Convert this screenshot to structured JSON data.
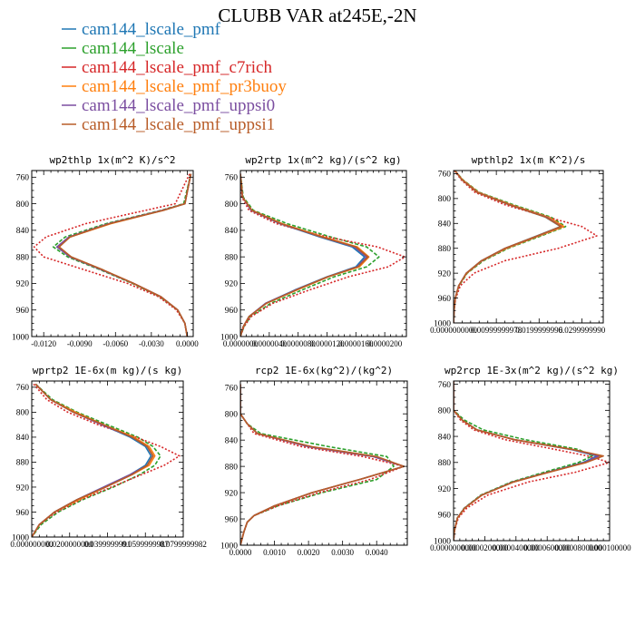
{
  "title": "CLUBB VAR at245E,-2N",
  "legend": [
    {
      "name": "cam144_lscale_pmf",
      "color": "#1f77b4",
      "dash": "solid"
    },
    {
      "name": "cam144_lscale",
      "color": "#2ca02c",
      "dash": "dashed"
    },
    {
      "name": "cam144_lscale_pmf_c7rich",
      "color": "#d62728",
      "dash": "dotted"
    },
    {
      "name": "cam144_lscale_pmf_pr3buoy",
      "color": "#ff7f0e",
      "dash": "solid"
    },
    {
      "name": "cam144_lscale_pmf_uppsi0",
      "color": "#7b4ea0",
      "dash": "solid"
    },
    {
      "name": "cam144_lscale_pmf_uppsi1",
      "color": "#b85c28",
      "dash": "solid"
    }
  ],
  "chart_data": [
    {
      "type": "line",
      "title": "wp2thlp   1x(m^2 K)/s^2",
      "xlim": [
        -0.013,
        0.0005
      ],
      "ylim": [
        1000,
        750
      ],
      "xticks": [
        "-0.0120",
        "-0.0090",
        "-0.0060",
        "-0.0030",
        "0.0000"
      ],
      "xtick_values": [
        -0.012,
        -0.009,
        -0.006,
        -0.003,
        0.0
      ],
      "yticks": [
        760,
        800,
        840,
        880,
        920,
        960,
        1000
      ],
      "y": [
        755,
        800,
        810,
        830,
        850,
        865,
        880,
        900,
        920,
        940,
        960,
        980,
        1000
      ],
      "series": [
        {
          "name": "cam144_lscale_pmf",
          "values": [
            0.0003,
            -0.0002,
            -0.002,
            -0.0065,
            -0.0098,
            -0.0108,
            -0.0097,
            -0.007,
            -0.0045,
            -0.0022,
            -0.0008,
            -0.0002,
            0.0
          ]
        },
        {
          "name": "cam144_lscale",
          "values": [
            0.0003,
            -0.0003,
            -0.0022,
            -0.0068,
            -0.0102,
            -0.0112,
            -0.01,
            -0.0072,
            -0.0046,
            -0.0023,
            -0.0008,
            -0.0002,
            0.0
          ]
        },
        {
          "name": "cam144_lscale_pmf_c7rich",
          "values": [
            0.0002,
            -0.001,
            -0.0035,
            -0.0085,
            -0.0118,
            -0.0128,
            -0.012,
            -0.0085,
            -0.005,
            -0.0024,
            -0.0009,
            -0.0002,
            0.0
          ]
        },
        {
          "name": "cam144_lscale_pmf_pr3buoy",
          "values": [
            0.0003,
            -0.0002,
            -0.002,
            -0.0064,
            -0.0098,
            -0.0108,
            -0.0097,
            -0.007,
            -0.0045,
            -0.0022,
            -0.0008,
            -0.0002,
            0.0
          ]
        },
        {
          "name": "cam144_lscale_pmf_uppsi0",
          "values": [
            0.0003,
            -0.0002,
            -0.0021,
            -0.0066,
            -0.0099,
            -0.0109,
            -0.0098,
            -0.0071,
            -0.0045,
            -0.0022,
            -0.0008,
            -0.0002,
            0.0
          ]
        },
        {
          "name": "cam144_lscale_pmf_uppsi1",
          "values": [
            0.0003,
            -0.0002,
            -0.002,
            -0.0065,
            -0.0098,
            -0.0107,
            -0.0097,
            -0.007,
            -0.0045,
            -0.0022,
            -0.0008,
            -0.0002,
            0.0
          ]
        }
      ]
    },
    {
      "type": "line",
      "title": "wp2rtp   1x(m^2 kg)/(s^2 kg)",
      "xlim": [
        0,
        2.3e-05
      ],
      "ylim": [
        1000,
        750
      ],
      "xticks": [
        "0.0000000",
        "0.0000040",
        "0.0000080",
        "0.0000120",
        "0.0000160",
        "0.0000200"
      ],
      "xtick_values": [
        0,
        4e-06,
        8e-06,
        1.2e-05,
        1.6e-05,
        2e-05
      ],
      "yticks": [
        760,
        800,
        840,
        880,
        920,
        960,
        1000
      ],
      "y": [
        755,
        790,
        810,
        830,
        850,
        865,
        880,
        895,
        910,
        930,
        950,
        970,
        985,
        1000
      ],
      "series": [
        {
          "name": "cam144_lscale_pmf",
          "values": [
            0.0,
            3e-07,
            1.5e-06,
            5.5e-06,
            1.1e-05,
            1.55e-05,
            1.72e-05,
            1.6e-05,
            1.2e-05,
            7.5e-06,
            3.5e-06,
            1.2e-06,
            4e-07,
            0.0
          ]
        },
        {
          "name": "cam144_lscale",
          "values": [
            0.0,
            4e-07,
            1.8e-06,
            6.5e-06,
            1.25e-05,
            1.75e-05,
            1.92e-05,
            1.75e-05,
            1.3e-05,
            8.5e-06,
            4.2e-06,
            1.4e-06,
            5e-07,
            0.0
          ]
        },
        {
          "name": "cam144_lscale_pmf_c7rich",
          "values": [
            0.0,
            2e-07,
            1.2e-06,
            5e-06,
            1.2e-05,
            1.9e-05,
            2.28e-05,
            2.05e-05,
            1.5e-05,
            9.5e-06,
            4.5e-06,
            1.5e-06,
            5e-07,
            0.0
          ]
        },
        {
          "name": "cam144_lscale_pmf_pr3buoy",
          "values": [
            0.0,
            3e-07,
            1.6e-06,
            5.8e-06,
            1.15e-05,
            1.62e-05,
            1.78e-05,
            1.65e-05,
            1.22e-05,
            7.8e-06,
            3.6e-06,
            1.2e-06,
            4e-07,
            0.0
          ]
        },
        {
          "name": "cam144_lscale_pmf_uppsi0",
          "values": [
            0.0,
            3e-07,
            1.5e-06,
            5.6e-06,
            1.12e-05,
            1.58e-05,
            1.75e-05,
            1.62e-05,
            1.21e-05,
            7.6e-06,
            3.5e-06,
            1.2e-06,
            4e-07,
            0.0
          ]
        },
        {
          "name": "cam144_lscale_pmf_uppsi1",
          "values": [
            0.0,
            3e-07,
            1.6e-06,
            5.7e-06,
            1.13e-05,
            1.6e-05,
            1.77e-05,
            1.63e-05,
            1.21e-05,
            7.7e-06,
            3.6e-06,
            1.2e-06,
            4e-07,
            0.0
          ]
        }
      ]
    },
    {
      "type": "line",
      "title": "wpthlp2   1x(m K^2)/s",
      "xlim": [
        0,
        0.035
      ],
      "ylim": [
        1000,
        755
      ],
      "xticks": [
        "0.0000000000",
        "0.00999999978",
        "0.0199999996",
        "0.0299999990"
      ],
      "xtick_values": [
        0,
        0.01,
        0.02,
        0.03
      ],
      "yticks": [
        760,
        800,
        840,
        880,
        920,
        960,
        1000
      ],
      "y": [
        755,
        770,
        790,
        810,
        830,
        845,
        860,
        880,
        900,
        920,
        940,
        960,
        980,
        1000
      ],
      "series": [
        {
          "name": "cam144_lscale_pmf",
          "values": [
            0.0003,
            0.002,
            0.0055,
            0.013,
            0.0215,
            0.025,
            0.0195,
            0.012,
            0.0065,
            0.003,
            0.0012,
            0.0004,
            0.0001,
            0.0
          ]
        },
        {
          "name": "cam144_lscale",
          "values": [
            0.0003,
            0.0022,
            0.006,
            0.014,
            0.0228,
            0.0262,
            0.0205,
            0.0128,
            0.007,
            0.0032,
            0.0013,
            0.0004,
            0.0001,
            0.0
          ]
        },
        {
          "name": "cam144_lscale_pmf_c7rich",
          "values": [
            0.0002,
            0.0018,
            0.005,
            0.012,
            0.022,
            0.03,
            0.0335,
            0.0245,
            0.012,
            0.0048,
            0.0016,
            0.0005,
            0.0001,
            0.0
          ]
        },
        {
          "name": "cam144_lscale_pmf_pr3buoy",
          "values": [
            0.0003,
            0.0021,
            0.0058,
            0.0135,
            0.0222,
            0.0258,
            0.02,
            0.0124,
            0.0067,
            0.0031,
            0.0012,
            0.0004,
            0.0001,
            0.0
          ]
        },
        {
          "name": "cam144_lscale_pmf_uppsi0",
          "values": [
            0.0003,
            0.002,
            0.0056,
            0.0132,
            0.0218,
            0.0252,
            0.0197,
            0.0121,
            0.0066,
            0.003,
            0.0012,
            0.0004,
            0.0001,
            0.0
          ]
        },
        {
          "name": "cam144_lscale_pmf_uppsi1",
          "values": [
            0.0003,
            0.002,
            0.0055,
            0.0131,
            0.0216,
            0.0251,
            0.0196,
            0.012,
            0.0065,
            0.003,
            0.0012,
            0.0004,
            0.0001,
            0.0
          ]
        }
      ]
    },
    {
      "type": "line",
      "title": "wprtp2   1E-6x(m kg)/(s kg)",
      "xlim": [
        0,
        0.08
      ],
      "ylim": [
        1000,
        750
      ],
      "xticks": [
        "0.000000000",
        "0.0200000000",
        "0.0399999991",
        "0.0599999987",
        "0.0799999982"
      ],
      "xtick_values": [
        0,
        0.02,
        0.04,
        0.06,
        0.08
      ],
      "yticks": [
        760,
        800,
        840,
        880,
        920,
        960,
        1000
      ],
      "y": [
        755,
        780,
        800,
        820,
        840,
        855,
        870,
        885,
        900,
        920,
        940,
        960,
        980,
        1000
      ],
      "series": [
        {
          "name": "cam144_lscale_pmf",
          "values": [
            0.002,
            0.01,
            0.022,
            0.037,
            0.052,
            0.06,
            0.063,
            0.06,
            0.052,
            0.038,
            0.024,
            0.012,
            0.004,
            0.0
          ]
        },
        {
          "name": "cam144_lscale",
          "values": [
            0.002,
            0.011,
            0.024,
            0.04,
            0.056,
            0.064,
            0.068,
            0.065,
            0.057,
            0.043,
            0.027,
            0.014,
            0.005,
            0.0
          ]
        },
        {
          "name": "cam144_lscale_pmf_c7rich",
          "values": [
            0.001,
            0.008,
            0.019,
            0.035,
            0.055,
            0.068,
            0.078,
            0.07,
            0.058,
            0.042,
            0.026,
            0.013,
            0.004,
            0.0
          ]
        },
        {
          "name": "cam144_lscale_pmf_pr3buoy",
          "values": [
            0.002,
            0.01,
            0.023,
            0.038,
            0.054,
            0.062,
            0.065,
            0.062,
            0.053,
            0.039,
            0.025,
            0.012,
            0.004,
            0.0
          ]
        },
        {
          "name": "cam144_lscale_pmf_uppsi0",
          "values": [
            0.002,
            0.01,
            0.022,
            0.037,
            0.053,
            0.061,
            0.064,
            0.061,
            0.052,
            0.038,
            0.024,
            0.012,
            0.004,
            0.0
          ]
        },
        {
          "name": "cam144_lscale_pmf_uppsi1",
          "values": [
            0.002,
            0.01,
            0.022,
            0.038,
            0.053,
            0.061,
            0.064,
            0.061,
            0.053,
            0.039,
            0.024,
            0.012,
            0.004,
            0.0
          ]
        }
      ]
    },
    {
      "type": "line",
      "title": "rcp2   1E-6x(kg^2)/(kg^2)",
      "xlim": [
        0,
        0.0049
      ],
      "ylim": [
        1000,
        750
      ],
      "xticks": [
        "0.0000",
        "0.0010",
        "0.0020",
        "0.0030",
        "0.0040"
      ],
      "xtick_values": [
        0,
        0.001,
        0.002,
        0.003,
        0.004
      ],
      "yticks": [
        760,
        800,
        840,
        880,
        920,
        960,
        1000
      ],
      "y": [
        755,
        800,
        815,
        830,
        850,
        865,
        880,
        900,
        920,
        940,
        955,
        965,
        980,
        1000
      ],
      "series": [
        {
          "name": "cam144_lscale_pmf",
          "values": [
            0.0,
            0.0,
            0.0002,
            0.0005,
            0.002,
            0.0039,
            0.0048,
            0.0035,
            0.0021,
            0.001,
            0.0004,
            0.0002,
            0.0001,
            0.0
          ]
        },
        {
          "name": "cam144_lscale",
          "values": [
            0.0,
            0.0,
            0.0002,
            0.0006,
            0.0026,
            0.0043,
            0.0045,
            0.004,
            0.0024,
            0.0011,
            0.0004,
            0.0002,
            0.0001,
            0.0
          ]
        },
        {
          "name": "cam144_lscale_pmf_c7rich",
          "values": [
            0.0,
            0.0,
            0.0002,
            0.0004,
            0.0018,
            0.0036,
            0.0048,
            0.0038,
            0.0023,
            0.0011,
            0.0004,
            0.0002,
            0.0001,
            0.0
          ]
        },
        {
          "name": "cam144_lscale_pmf_pr3buoy",
          "values": [
            0.0,
            0.0,
            0.0002,
            0.0005,
            0.002,
            0.0039,
            0.0048,
            0.0035,
            0.0021,
            0.001,
            0.0004,
            0.0002,
            0.0001,
            0.0
          ]
        },
        {
          "name": "cam144_lscale_pmf_uppsi0",
          "values": [
            0.0,
            0.0,
            0.0002,
            0.0005,
            0.002,
            0.0039,
            0.0048,
            0.0035,
            0.0021,
            0.001,
            0.0004,
            0.0002,
            0.0001,
            0.0
          ]
        },
        {
          "name": "cam144_lscale_pmf_uppsi1",
          "values": [
            0.0,
            0.0,
            0.0002,
            0.0005,
            0.0021,
            0.004,
            0.0048,
            0.0035,
            0.0021,
            0.001,
            0.0004,
            0.0002,
            0.0001,
            0.0
          ]
        }
      ]
    },
    {
      "type": "line",
      "title": "wp2rcp   1E-3x(m^2 kg)/(s^2 kg)",
      "xlim": [
        0,
        0.0001
      ],
      "ylim": [
        1000,
        755
      ],
      "xticks": [
        "0.0000000000",
        "0.0000200000",
        "0.0000400000",
        "0.0000600000",
        "0.0000800000",
        "0.000100000"
      ],
      "xtick_values": [
        0,
        2e-05,
        4e-05,
        6e-05,
        8e-05,
        0.0001
      ],
      "yticks": [
        760,
        800,
        840,
        880,
        920,
        960,
        1000
      ],
      "y": [
        755,
        800,
        815,
        830,
        845,
        860,
        870,
        880,
        895,
        910,
        930,
        950,
        965,
        985,
        1000
      ],
      "series": [
        {
          "name": "cam144_lscale_pmf",
          "values": [
            0.0,
            0.0,
            5.5e-06,
            1.5e-05,
            3.9e-05,
            7.5e-05,
            9.2e-05,
            8.3e-05,
            6e-05,
            3.8e-05,
            1.8e-05,
            7e-06,
            2.5e-06,
            5e-07,
            0.0
          ]
        },
        {
          "name": "cam144_lscale",
          "values": [
            0.0,
            0.0,
            7e-06,
            1.9e-05,
            4.6e-05,
            8e-05,
            8.9e-05,
            8e-05,
            5.8e-05,
            3.7e-05,
            1.75e-05,
            6.8e-06,
            2.4e-06,
            5e-07,
            0.0
          ]
        },
        {
          "name": "cam144_lscale_pmf_c7rich",
          "values": [
            0.0,
            0.0,
            4.5e-06,
            1.3e-05,
            3.3e-05,
            6.5e-05,
            8.6e-05,
            0.0001,
            7.8e-05,
            4.8e-05,
            2.2e-05,
            8.5e-06,
            3e-06,
            6e-07,
            0.0
          ]
        },
        {
          "name": "cam144_lscale_pmf_pr3buoy",
          "values": [
            0.0,
            0.0,
            5.5e-06,
            1.5e-05,
            3.9e-05,
            7.6e-05,
            9.5e-05,
            8.5e-05,
            6.1e-05,
            3.85e-05,
            1.82e-05,
            7.1e-06,
            2.5e-06,
            5e-07,
            0.0
          ]
        },
        {
          "name": "cam144_lscale_pmf_uppsi0",
          "values": [
            0.0,
            0.0,
            5.5e-06,
            1.5e-05,
            3.9e-05,
            7.55e-05,
            9.3e-05,
            8.4e-05,
            6.05e-05,
            3.82e-05,
            1.81e-05,
            7e-06,
            2.5e-06,
            5e-07,
            0.0
          ]
        },
        {
          "name": "cam144_lscale_pmf_uppsi1",
          "values": [
            0.0,
            0.0,
            5.5e-06,
            1.5e-05,
            3.9e-05,
            7.6e-05,
            9.6e-05,
            8.5e-05,
            6.1e-05,
            3.85e-05,
            1.82e-05,
            7.1e-06,
            2.5e-06,
            5e-07,
            0.0
          ]
        }
      ]
    }
  ]
}
